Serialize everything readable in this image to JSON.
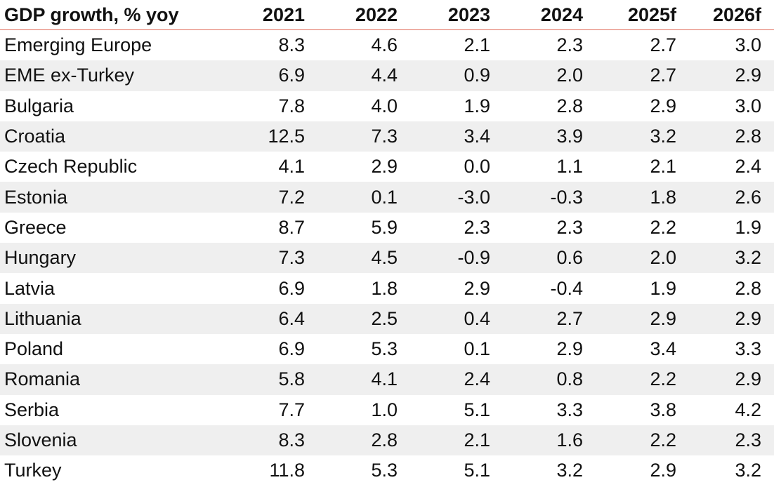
{
  "chart_data": {
    "type": "table",
    "title": "GDP growth, % yoy",
    "columns": [
      "2021",
      "2022",
      "2023",
      "2024",
      "2025f",
      "2026f"
    ],
    "rows": [
      {
        "label": "Emerging Europe",
        "values": [
          "8.3",
          "4.6",
          "2.1",
          "2.3",
          "2.7",
          "3.0"
        ]
      },
      {
        "label": "EME ex-Turkey",
        "values": [
          "6.9",
          "4.4",
          "0.9",
          "2.0",
          "2.7",
          "2.9"
        ]
      },
      {
        "label": "Bulgaria",
        "values": [
          "7.8",
          "4.0",
          "1.9",
          "2.8",
          "2.9",
          "3.0"
        ]
      },
      {
        "label": "Croatia",
        "values": [
          "12.5",
          "7.3",
          "3.4",
          "3.9",
          "3.2",
          "2.8"
        ]
      },
      {
        "label": "Czech Republic",
        "values": [
          "4.1",
          "2.9",
          "0.0",
          "1.1",
          "2.1",
          "2.4"
        ]
      },
      {
        "label": "Estonia",
        "values": [
          "7.2",
          "0.1",
          "-3.0",
          "-0.3",
          "1.8",
          "2.6"
        ]
      },
      {
        "label": "Greece",
        "values": [
          "8.7",
          "5.9",
          "2.3",
          "2.3",
          "2.2",
          "1.9"
        ]
      },
      {
        "label": "Hungary",
        "values": [
          "7.3",
          "4.5",
          "-0.9",
          "0.6",
          "2.0",
          "3.2"
        ]
      },
      {
        "label": "Latvia",
        "values": [
          "6.9",
          "1.8",
          "2.9",
          "-0.4",
          "1.9",
          "2.8"
        ]
      },
      {
        "label": "Lithuania",
        "values": [
          "6.4",
          "2.5",
          "0.4",
          "2.7",
          "2.9",
          "2.9"
        ]
      },
      {
        "label": "Poland",
        "values": [
          "6.9",
          "5.3",
          "0.1",
          "2.9",
          "3.4",
          "3.3"
        ]
      },
      {
        "label": "Romania",
        "values": [
          "5.8",
          "4.1",
          "2.4",
          "0.8",
          "2.2",
          "2.9"
        ]
      },
      {
        "label": "Serbia",
        "values": [
          "7.7",
          "1.0",
          "5.1",
          "3.3",
          "3.8",
          "4.2"
        ]
      },
      {
        "label": "Slovenia",
        "values": [
          "8.3",
          "2.8",
          "2.1",
          "1.6",
          "2.2",
          "2.3"
        ]
      },
      {
        "label": "Turkey",
        "values": [
          "11.8",
          "5.3",
          "5.1",
          "3.2",
          "2.9",
          "3.2"
        ]
      }
    ],
    "header_rule_color": "#e06b5a",
    "band_color": "#efefef"
  }
}
